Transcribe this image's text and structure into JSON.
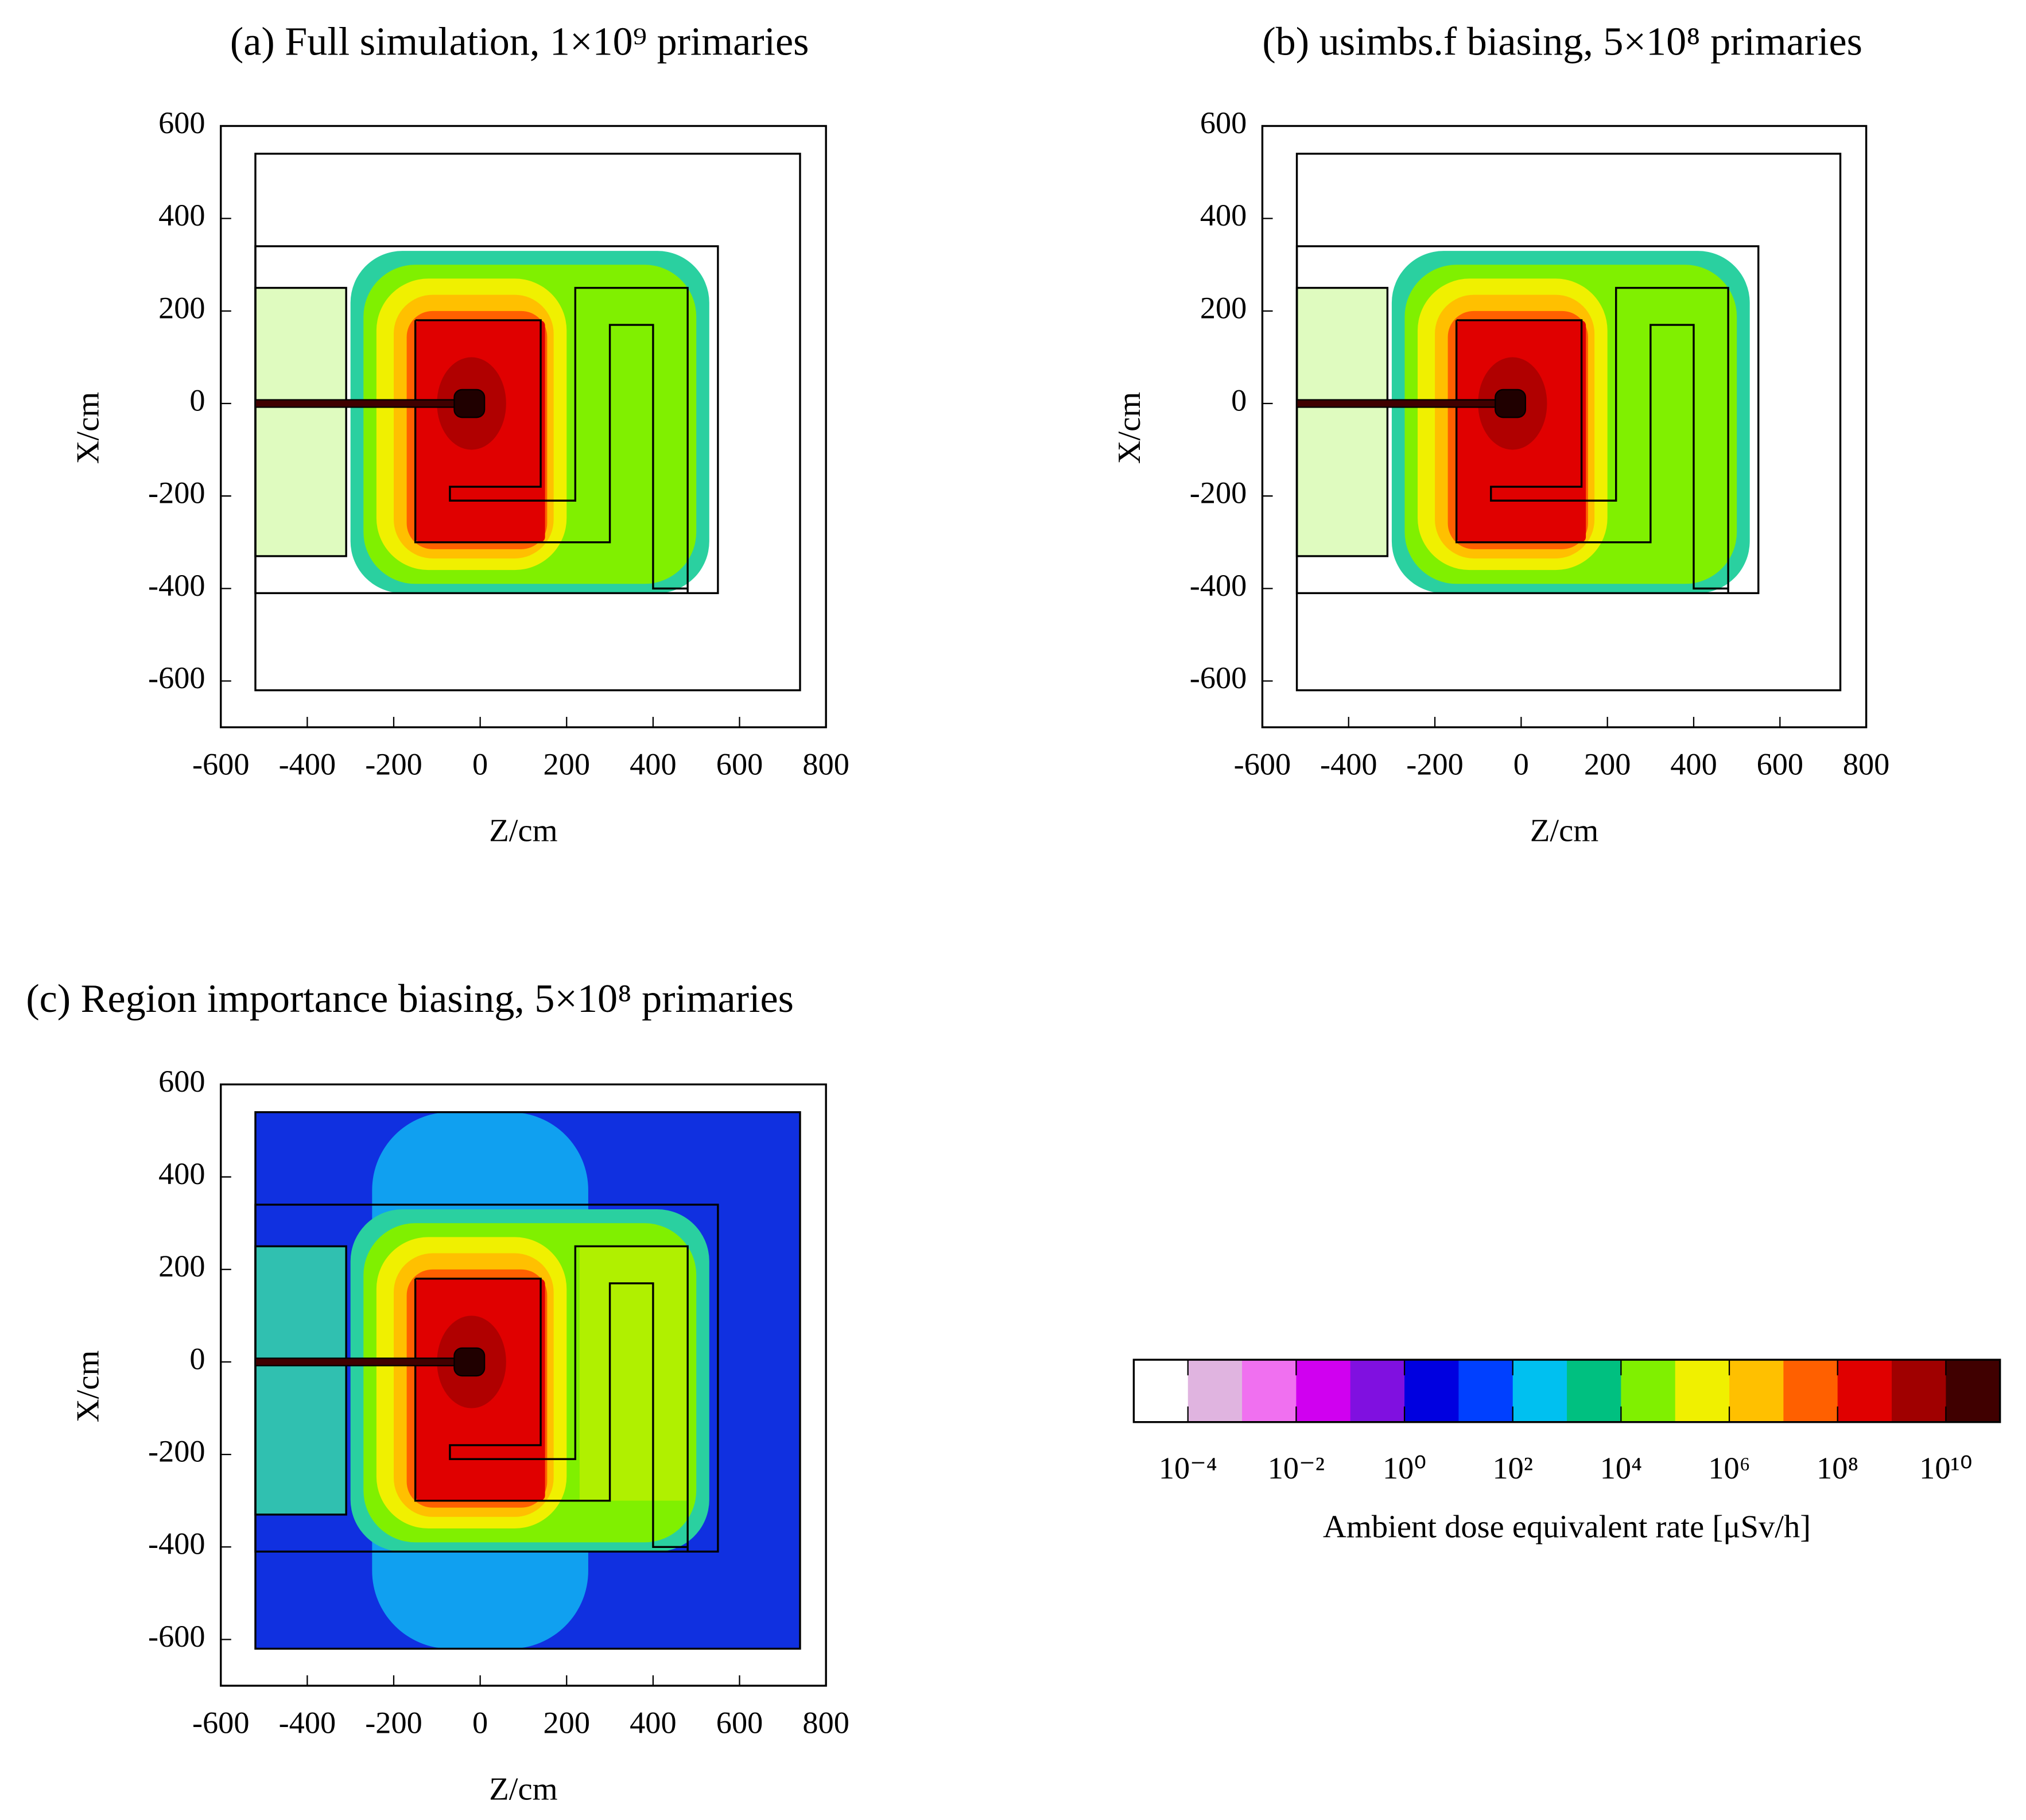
{
  "chart_data": [
    {
      "type": "heatmap",
      "title": "(a) Full simulation, 1×10⁹ primaries",
      "xlabel": "Z/cm",
      "ylabel": "X/cm",
      "xlim": [
        -600,
        800
      ],
      "ylim": [
        -700,
        600
      ],
      "xticks": [
        -600,
        -400,
        -200,
        0,
        200,
        400,
        600,
        800
      ],
      "yticks": [
        -600,
        -400,
        -200,
        0,
        200,
        400,
        600
      ]
    },
    {
      "type": "heatmap",
      "title": "(b) usimbs.f biasing, 5×10⁸ primaries",
      "xlabel": "Z/cm",
      "ylabel": "X/cm",
      "xlim": [
        -600,
        800
      ],
      "ylim": [
        -700,
        600
      ],
      "xticks": [
        -600,
        -400,
        -200,
        0,
        200,
        400,
        600,
        800
      ],
      "yticks": [
        -600,
        -400,
        -200,
        0,
        200,
        400,
        600
      ]
    },
    {
      "type": "heatmap",
      "title": "(c) Region importance biasing, 5×10⁸ primaries",
      "xlabel": "Z/cm",
      "ylabel": "X/cm",
      "xlim": [
        -600,
        800
      ],
      "ylim": [
        -700,
        600
      ],
      "xticks": [
        -600,
        -400,
        -200,
        0,
        200,
        400,
        600,
        800
      ],
      "yticks": [
        -600,
        -400,
        -200,
        0,
        200,
        400,
        600
      ]
    },
    {
      "type": "colorbar",
      "label": "Ambient dose equivalent rate [μSv/h]",
      "log_scale": true,
      "lim": [
        1e-05,
        100000000000
      ],
      "colors": [
        "#ffffff",
        "#e0b4e0",
        "#f070f0",
        "#d000f0",
        "#8010e0",
        "#0000e0",
        "#0040ff",
        "#00c0f0",
        "#00c080",
        "#80f000",
        "#f0f000",
        "#ffc000",
        "#ff6000",
        "#e00000",
        "#a00000",
        "#400000"
      ],
      "ticks": [
        {
          "value": 0.0001,
          "label": "10⁻⁴"
        },
        {
          "value": 0.01,
          "label": "10⁻²"
        },
        {
          "value": 1,
          "label": "10⁰"
        },
        {
          "value": 100,
          "label": "10²"
        },
        {
          "value": 10000,
          "label": "10⁴"
        },
        {
          "value": 1000000,
          "label": "10⁶"
        },
        {
          "value": 100000000,
          "label": "10⁸"
        },
        {
          "value": 10000000000,
          "label": "10¹⁰"
        }
      ]
    }
  ]
}
